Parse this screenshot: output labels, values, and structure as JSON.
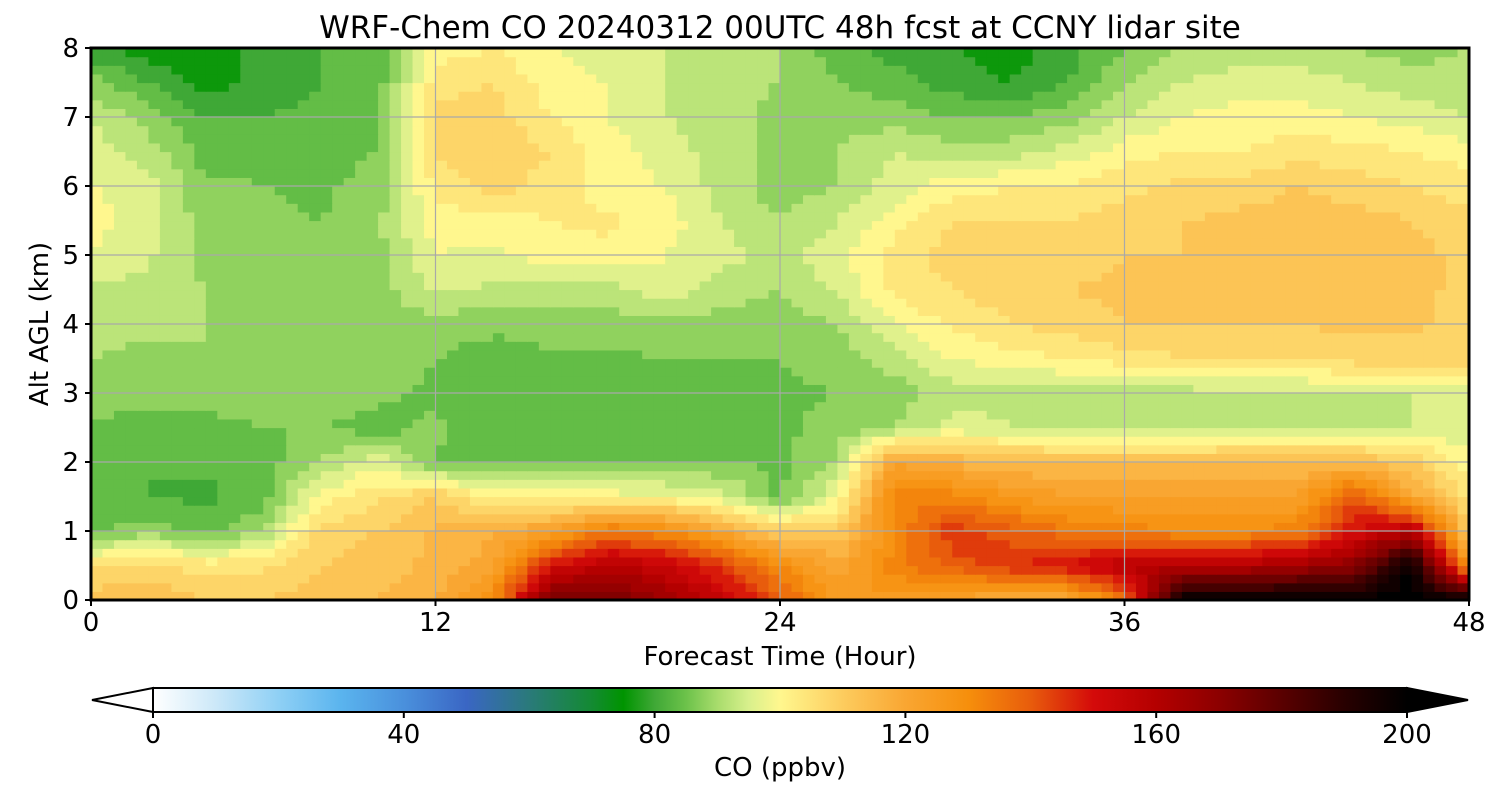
{
  "chart_data": {
    "type": "heatmap",
    "title": "WRF-Chem CO  20240312 00UTC 48h fcst at CCNY lidar site",
    "xlabel": "Forecast Time (Hour)",
    "ylabel": "Alt AGL (km)",
    "xlim": [
      0,
      48
    ],
    "ylim": [
      0,
      8
    ],
    "xticks": [
      "0",
      "12",
      "24",
      "36",
      "48"
    ],
    "yticks": [
      "0",
      "1",
      "2",
      "3",
      "4",
      "5",
      "6",
      "7",
      "8"
    ],
    "grid": true,
    "x": [
      0,
      2,
      4,
      6,
      8,
      10,
      12,
      14,
      16,
      18,
      20,
      22,
      24,
      26,
      28,
      30,
      32,
      34,
      36,
      38,
      40,
      42,
      44,
      46,
      48
    ],
    "y": [
      0,
      0.5,
      1,
      1.5,
      2,
      2.5,
      3,
      3.5,
      4,
      4.5,
      5,
      5.5,
      6,
      6.5,
      7,
      7.5,
      8
    ],
    "z": [
      [
        112,
        114,
        110,
        110,
        112,
        114,
        118,
        130,
        175,
        175,
        165,
        155,
        140,
        125,
        125,
        120,
        118,
        118,
        135,
        200,
        200,
        200,
        200,
        200,
        200
      ],
      [
        105,
        108,
        104,
        105,
        110,
        112,
        115,
        120,
        150,
        160,
        155,
        145,
        130,
        120,
        132,
        140,
        145,
        150,
        158,
        160,
        160,
        165,
        170,
        200,
        125
      ],
      [
        85,
        88,
        85,
        90,
        108,
        110,
        115,
        118,
        122,
        135,
        130,
        120,
        110,
        110,
        130,
        145,
        140,
        135,
        132,
        130,
        130,
        132,
        150,
        160,
        110
      ],
      [
        83,
        82,
        81,
        84,
        100,
        105,
        110,
        102,
        100,
        100,
        99,
        96,
        85,
        98,
        132,
        132,
        126,
        122,
        122,
        122,
        122,
        122,
        142,
        120,
        105
      ],
      [
        83,
        82,
        83,
        84,
        90,
        97,
        85,
        84,
        84,
        85,
        86,
        86,
        85,
        90,
        122,
        117,
        114,
        114,
        114,
        114,
        114,
        114,
        114,
        110,
        100
      ],
      [
        85,
        85,
        85,
        86,
        86,
        84,
        87,
        84,
        83,
        84,
        84,
        84,
        85,
        88,
        90,
        96,
        94,
        92,
        92,
        92,
        93,
        93,
        94,
        94,
        95
      ],
      [
        88,
        87,
        87,
        88,
        90,
        87,
        85,
        83,
        84,
        84,
        84,
        84,
        85,
        86,
        88,
        92,
        93,
        92,
        90,
        92,
        93,
        93,
        93,
        94,
        95
      ],
      [
        90,
        89,
        90,
        88,
        90,
        89,
        86,
        84,
        85,
        85,
        86,
        86,
        86,
        88,
        92,
        98,
        100,
        102,
        104,
        106,
        106,
        106,
        108,
        108,
        108
      ],
      [
        91,
        91,
        90,
        88,
        90,
        88,
        88,
        87,
        88,
        88,
        89,
        88,
        88,
        90,
        98,
        103,
        106,
        108,
        110,
        110,
        110,
        110,
        111,
        111,
        108
      ],
      [
        93,
        92,
        90,
        88,
        88,
        88,
        95,
        93,
        93,
        92,
        97,
        92,
        90,
        95,
        103,
        106,
        108,
        110,
        111,
        110,
        111,
        112,
        113,
        112,
        108
      ],
      [
        98,
        95,
        88,
        88,
        88,
        89,
        98,
        97,
        100,
        101,
        98,
        95,
        93,
        96,
        104,
        108,
        108,
        108,
        110,
        110,
        112,
        114,
        114,
        112,
        108
      ],
      [
        100,
        95,
        88,
        87,
        86,
        89,
        100,
        100,
        102,
        103,
        100,
        94,
        90,
        94,
        100,
        106,
        106,
        106,
        108,
        110,
        111,
        112,
        112,
        110,
        107
      ],
      [
        98,
        96,
        87,
        86,
        85,
        88,
        103,
        108,
        104,
        100,
        98,
        92,
        88,
        90,
        96,
        100,
        102,
        102,
        105,
        107,
        108,
        110,
        108,
        106,
        104
      ],
      [
        96,
        92,
        84,
        84,
        84,
        86,
        106,
        110,
        106,
        100,
        96,
        92,
        88,
        90,
        94,
        92,
        92,
        96,
        100,
        102,
        102,
        104,
        104,
        102,
        100
      ],
      [
        94,
        88,
        82,
        82,
        83,
        85,
        108,
        108,
        102,
        98,
        94,
        92,
        88,
        88,
        88,
        86,
        86,
        88,
        94,
        98,
        100,
        100,
        98,
        96,
        94
      ],
      [
        88,
        82,
        76,
        80,
        82,
        84,
        104,
        106,
        100,
        98,
        94,
        92,
        90,
        86,
        84,
        80,
        78,
        82,
        90,
        94,
        96,
        96,
        94,
        92,
        92
      ],
      [
        78,
        76,
        74,
        80,
        82,
        84,
        100,
        102,
        98,
        96,
        94,
        92,
        90,
        84,
        80,
        78,
        76,
        80,
        86,
        90,
        92,
        92,
        90,
        88,
        90
      ]
    ],
    "colorbar": {
      "label": "CO  (ppbv)",
      "min": 0,
      "max": 200,
      "ticks": [
        "0",
        "40",
        "80",
        "120",
        "160",
        "200"
      ],
      "extend": "both",
      "stops": [
        [
          0,
          "#ffffff"
        ],
        [
          10,
          "#cce8f8"
        ],
        [
          20,
          "#8fd0f5"
        ],
        [
          30,
          "#5ab4ee"
        ],
        [
          40,
          "#4a90dc"
        ],
        [
          50,
          "#3a66c4"
        ],
        [
          60,
          "#2a7a7a"
        ],
        [
          70,
          "#138a32"
        ],
        [
          75,
          "#009400"
        ],
        [
          80,
          "#3fa836"
        ],
        [
          85,
          "#6cc24a"
        ],
        [
          90,
          "#a8dc6c"
        ],
        [
          95,
          "#d8f08c"
        ],
        [
          100,
          "#fff78e"
        ],
        [
          110,
          "#fdcc5e"
        ],
        [
          120,
          "#f9a632"
        ],
        [
          130,
          "#f68f0c"
        ],
        [
          140,
          "#e85c0c"
        ],
        [
          150,
          "#d40a0a"
        ],
        [
          160,
          "#b40000"
        ],
        [
          170,
          "#8c0000"
        ],
        [
          180,
          "#5a0000"
        ],
        [
          190,
          "#280000"
        ],
        [
          200,
          "#000000"
        ]
      ]
    }
  }
}
